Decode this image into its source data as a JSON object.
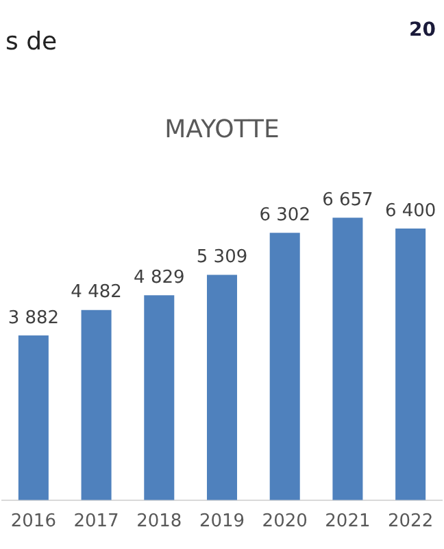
{
  "chart_data": {
    "type": "bar",
    "title": "MAYOTTE",
    "annotations": [
      "s de",
      "20"
    ],
    "categories": [
      "2016",
      "2017",
      "2018",
      "2019",
      "2020",
      "2021",
      "2022"
    ],
    "values": [
      3882,
      4482,
      4829,
      5309,
      6302,
      6657,
      6400
    ],
    "value_labels": [
      "3 882",
      "4 482",
      "4 829",
      "5 309",
      "6 302",
      "6 657",
      "6 400"
    ],
    "color": "#4f81bd",
    "grid": false,
    "legend": false,
    "tick_labels": "x"
  }
}
